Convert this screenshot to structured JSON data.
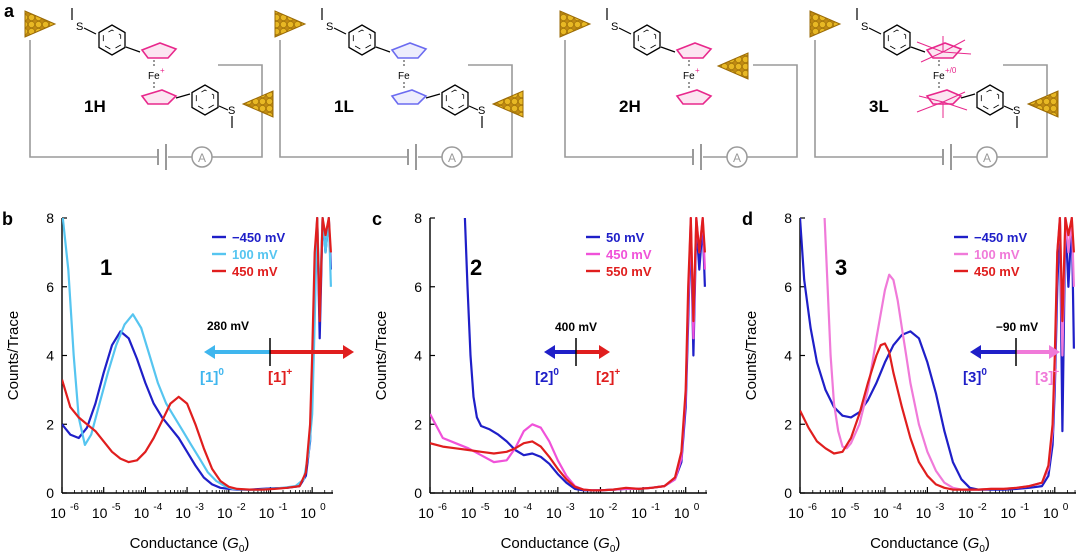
{
  "panel_a": {
    "label": "a",
    "circuits": [
      {
        "label": "1H",
        "fe": "Fe",
        "charge": "+",
        "ring_color": "#e8288c"
      },
      {
        "label": "1L",
        "fe": "Fe",
        "charge": "",
        "ring_color": "#6b6bf0"
      },
      {
        "label": "2H",
        "fe": "Fe",
        "charge": "+",
        "ring_color": "#e8288c"
      },
      {
        "label": "3L",
        "fe": "Fe",
        "charge": "+/0",
        "ring_color": "#e8288c"
      }
    ],
    "ammeter_symbol": "A",
    "methyl_symbol": "S"
  },
  "chart_data": [
    {
      "panel": "b",
      "type": "line",
      "title": "1",
      "xlabel": "Conductance (G",
      "xlabel_sub": "0",
      "ylabel": "Counts/Trace",
      "xscale": "log",
      "xlim": [
        -6,
        0.5
      ],
      "ylim": [
        0,
        8
      ],
      "yticks": [
        "0",
        "2",
        "4",
        "6",
        "8"
      ],
      "xticks": [
        {
          "base": "10",
          "exp": "-6"
        },
        {
          "base": "10",
          "exp": "-5"
        },
        {
          "base": "10",
          "exp": "-4"
        },
        {
          "base": "10",
          "exp": "-3"
        },
        {
          "base": "10",
          "exp": "-2"
        },
        {
          "base": "10",
          "exp": "-1"
        },
        {
          "base": "10",
          "exp": "0"
        }
      ],
      "switch_voltage": "280 mV",
      "state_left": "[1]",
      "state_left_sup": "0",
      "state_left_color": "#3fb6ee",
      "state_right": "[1]",
      "state_right_sup": "+",
      "state_right_color": "#e01e1e",
      "series": [
        {
          "name": "−450 mV",
          "color": "#1f1fc8",
          "x": [
            -6.0,
            -5.8,
            -5.6,
            -5.4,
            -5.2,
            -5.0,
            -4.8,
            -4.6,
            -4.4,
            -4.2,
            -4.0,
            -3.8,
            -3.6,
            -3.4,
            -3.2,
            -3.0,
            -2.8,
            -2.6,
            -2.4,
            -2.2,
            -2.0,
            -1.8,
            -1.5,
            -1.2,
            -0.9,
            -0.6,
            -0.3,
            -0.15,
            -0.05,
            0.0,
            0.06,
            0.12,
            0.18,
            0.25,
            0.32,
            0.4,
            0.45
          ],
          "y": [
            2.0,
            1.7,
            1.6,
            1.9,
            2.6,
            3.5,
            4.3,
            4.7,
            4.5,
            3.9,
            3.2,
            2.6,
            2.2,
            1.9,
            1.6,
            1.2,
            0.8,
            0.45,
            0.25,
            0.15,
            0.12,
            0.1,
            0.1,
            0.12,
            0.14,
            0.15,
            0.2,
            0.5,
            1.5,
            3.5,
            6.0,
            8.0,
            4.5,
            8.0,
            7.0,
            8.0,
            6.5
          ]
        },
        {
          "name": "100 mV",
          "color": "#56c5f0",
          "x": [
            -5.98,
            -5.85,
            -5.72,
            -5.6,
            -5.45,
            -5.3,
            -5.1,
            -4.9,
            -4.7,
            -4.5,
            -4.3,
            -4.1,
            -3.9,
            -3.7,
            -3.5,
            -3.3,
            -3.1,
            -2.9,
            -2.7,
            -2.5,
            -2.3,
            -2.1,
            -1.9,
            -1.6,
            -1.3,
            -1.0,
            -0.7,
            -0.4,
            -0.2,
            -0.08,
            0.0,
            0.06,
            0.12,
            0.18,
            0.25,
            0.32,
            0.4,
            0.45
          ],
          "y": [
            8.0,
            6.5,
            4.0,
            2.2,
            1.4,
            1.7,
            2.6,
            3.5,
            4.3,
            4.9,
            5.2,
            4.8,
            4.0,
            3.2,
            2.6,
            2.2,
            1.8,
            1.4,
            1.0,
            0.6,
            0.35,
            0.2,
            0.12,
            0.1,
            0.1,
            0.12,
            0.15,
            0.2,
            0.4,
            1.2,
            2.3,
            5.0,
            8.0,
            5.5,
            8.0,
            7.0,
            8.0,
            6.0
          ]
        },
        {
          "name": "450 mV",
          "color": "#e01e1e",
          "x": [
            -6.0,
            -5.8,
            -5.6,
            -5.4,
            -5.2,
            -5.0,
            -4.8,
            -4.6,
            -4.4,
            -4.2,
            -4.0,
            -3.8,
            -3.6,
            -3.4,
            -3.2,
            -3.0,
            -2.8,
            -2.6,
            -2.4,
            -2.2,
            -2.0,
            -1.8,
            -1.5,
            -1.2,
            -0.9,
            -0.6,
            -0.3,
            -0.15,
            -0.05,
            0.0,
            0.06,
            0.12,
            0.18,
            0.25,
            0.32,
            0.4,
            0.45
          ],
          "y": [
            3.3,
            2.5,
            2.2,
            2.0,
            1.8,
            1.5,
            1.2,
            1.0,
            0.9,
            0.95,
            1.2,
            1.6,
            2.1,
            2.6,
            2.8,
            2.6,
            2.0,
            1.3,
            0.7,
            0.35,
            0.18,
            0.12,
            0.1,
            0.1,
            0.12,
            0.15,
            0.2,
            0.6,
            2.0,
            4.0,
            7.0,
            8.0,
            5.0,
            8.0,
            7.5,
            8.0,
            7.0
          ]
        }
      ]
    },
    {
      "panel": "c",
      "type": "line",
      "title": "2",
      "xlabel": "Conductance (G",
      "xlabel_sub": "0",
      "ylabel": "Counts/Trace",
      "xscale": "log",
      "xlim": [
        -6,
        0.5
      ],
      "ylim": [
        0,
        8
      ],
      "yticks": [
        "0",
        "2",
        "4",
        "6",
        "8"
      ],
      "xticks": [
        {
          "base": "10",
          "exp": "-6"
        },
        {
          "base": "10",
          "exp": "-5"
        },
        {
          "base": "10",
          "exp": "-4"
        },
        {
          "base": "10",
          "exp": "-3"
        },
        {
          "base": "10",
          "exp": "-2"
        },
        {
          "base": "10",
          "exp": "-1"
        },
        {
          "base": "10",
          "exp": "0"
        }
      ],
      "switch_voltage": "400 mV",
      "state_left": "[2]",
      "state_left_sup": "0",
      "state_left_color": "#1f1fc8",
      "state_right": "[2]",
      "state_right_sup": "+",
      "state_right_color": "#e01e1e",
      "series": [
        {
          "name": "50 mV",
          "color": "#1f1fc8",
          "x": [
            -5.18,
            -5.12,
            -5.05,
            -4.98,
            -4.9,
            -4.8,
            -4.6,
            -4.4,
            -4.2,
            -4.0,
            -3.8,
            -3.6,
            -3.4,
            -3.2,
            -3.0,
            -2.8,
            -2.6,
            -2.4,
            -2.2,
            -2.0,
            -1.7,
            -1.4,
            -1.1,
            -0.8,
            -0.5,
            -0.25,
            -0.1,
            0.0,
            0.06,
            0.12,
            0.18,
            0.25,
            0.32,
            0.4,
            0.45
          ],
          "y": [
            8.0,
            6.0,
            4.0,
            2.8,
            2.2,
            1.95,
            1.85,
            1.7,
            1.5,
            1.25,
            1.1,
            1.15,
            1.05,
            0.85,
            0.55,
            0.3,
            0.12,
            0.08,
            0.08,
            0.08,
            0.1,
            0.12,
            0.12,
            0.15,
            0.2,
            0.4,
            0.9,
            2.5,
            5.0,
            7.8,
            4.0,
            7.8,
            6.5,
            7.8,
            6.0
          ]
        },
        {
          "name": "450 mV",
          "color": "#f052d9",
          "x": [
            -6.0,
            -5.7,
            -5.4,
            -5.1,
            -4.8,
            -4.5,
            -4.2,
            -4.0,
            -3.8,
            -3.6,
            -3.4,
            -3.2,
            -3.0,
            -2.8,
            -2.6,
            -2.4,
            -2.2,
            -2.0,
            -1.7,
            -1.4,
            -1.1,
            -0.8,
            -0.5,
            -0.25,
            -0.1,
            0.0,
            0.06,
            0.12,
            0.18,
            0.25,
            0.32,
            0.4,
            0.45
          ],
          "y": [
            2.3,
            1.6,
            1.45,
            1.3,
            1.1,
            0.9,
            0.95,
            1.3,
            1.8,
            2.0,
            1.9,
            1.5,
            0.95,
            0.5,
            0.2,
            0.1,
            0.08,
            0.08,
            0.1,
            0.12,
            0.12,
            0.15,
            0.2,
            0.4,
            1.0,
            2.8,
            5.5,
            8.0,
            4.5,
            8.0,
            7.0,
            8.0,
            6.5
          ]
        },
        {
          "name": "550 mV",
          "color": "#e01e1e",
          "x": [
            -6.0,
            -5.7,
            -5.4,
            -5.1,
            -4.8,
            -4.5,
            -4.2,
            -4.0,
            -3.8,
            -3.6,
            -3.4,
            -3.2,
            -3.0,
            -2.8,
            -2.6,
            -2.4,
            -2.2,
            -2.0,
            -1.7,
            -1.4,
            -1.1,
            -0.8,
            -0.5,
            -0.25,
            -0.1,
            0.0,
            0.06,
            0.12,
            0.18,
            0.25,
            0.32,
            0.4,
            0.45
          ],
          "y": [
            1.45,
            1.35,
            1.3,
            1.25,
            1.2,
            1.15,
            1.2,
            1.3,
            1.45,
            1.5,
            1.35,
            1.05,
            0.7,
            0.4,
            0.18,
            0.1,
            0.08,
            0.08,
            0.1,
            0.15,
            0.12,
            0.15,
            0.2,
            0.45,
            1.2,
            3.0,
            6.0,
            8.0,
            5.0,
            8.0,
            7.0,
            8.0,
            7.0
          ]
        }
      ]
    },
    {
      "panel": "d",
      "type": "line",
      "title": "3",
      "xlabel": "Conductance (G",
      "xlabel_sub": "0",
      "ylabel": "Counts/Trace",
      "xscale": "log",
      "xlim": [
        -6,
        0.5
      ],
      "ylim": [
        0,
        8
      ],
      "yticks": [
        "0",
        "2",
        "4",
        "6",
        "8"
      ],
      "xticks": [
        {
          "base": "10",
          "exp": "-6"
        },
        {
          "base": "10",
          "exp": "-5"
        },
        {
          "base": "10",
          "exp": "-4"
        },
        {
          "base": "10",
          "exp": "-3"
        },
        {
          "base": "10",
          "exp": "-2"
        },
        {
          "base": "10",
          "exp": "-1"
        },
        {
          "base": "10",
          "exp": "0"
        }
      ],
      "switch_voltage": "−90 mV",
      "state_left": "[3]",
      "state_left_sup": "0",
      "state_left_color": "#1f1fc8",
      "state_right": "[3]",
      "state_right_sup": "+",
      "state_right_color": "#f07ad9",
      "series": [
        {
          "name": "−450 mV",
          "color": "#1f1fc8",
          "x": [
            -6.0,
            -5.9,
            -5.75,
            -5.6,
            -5.4,
            -5.2,
            -5.0,
            -4.8,
            -4.6,
            -4.4,
            -4.2,
            -4.0,
            -3.8,
            -3.6,
            -3.4,
            -3.2,
            -3.0,
            -2.8,
            -2.6,
            -2.4,
            -2.2,
            -2.0,
            -1.8,
            -1.5,
            -1.2,
            -0.9,
            -0.6,
            -0.3,
            -0.15,
            -0.05,
            0.0,
            0.06,
            0.12,
            0.18,
            0.25,
            0.32,
            0.4,
            0.45
          ],
          "y": [
            8.0,
            6.2,
            4.8,
            3.8,
            3.0,
            2.5,
            2.25,
            2.2,
            2.35,
            2.7,
            3.2,
            3.8,
            4.3,
            4.6,
            4.7,
            4.5,
            3.8,
            2.9,
            1.8,
            0.9,
            0.4,
            0.15,
            0.1,
            0.1,
            0.1,
            0.12,
            0.15,
            0.2,
            0.5,
            1.4,
            3.0,
            6.0,
            8.0,
            1.8,
            8.0,
            6.0,
            8.0,
            4.2
          ]
        },
        {
          "name": "100 mV",
          "color": "#f07ad9",
          "x": [
            -5.42,
            -5.35,
            -5.28,
            -5.2,
            -5.1,
            -5.0,
            -4.9,
            -4.8,
            -4.6,
            -4.4,
            -4.2,
            -4.0,
            -3.9,
            -3.8,
            -3.7,
            -3.6,
            -3.5,
            -3.4,
            -3.2,
            -3.0,
            -2.8,
            -2.6,
            -2.4,
            -2.2,
            -2.0,
            -1.8,
            -1.5,
            -1.2,
            -0.9,
            -0.6,
            -0.3,
            -0.15,
            -0.05,
            0.0,
            0.06,
            0.12,
            0.18,
            0.25,
            0.32,
            0.4,
            0.45
          ],
          "y": [
            8.0,
            6.0,
            4.0,
            2.6,
            1.8,
            1.35,
            1.3,
            1.45,
            2.0,
            3.0,
            4.5,
            5.9,
            6.35,
            6.2,
            5.6,
            4.8,
            4.0,
            3.2,
            2.0,
            1.2,
            0.65,
            0.3,
            0.15,
            0.1,
            0.1,
            0.1,
            0.12,
            0.12,
            0.15,
            0.2,
            0.3,
            0.7,
            1.8,
            3.5,
            7.0,
            8.0,
            4.0,
            8.0,
            7.0,
            8.0,
            6.0
          ]
        },
        {
          "name": "450 mV",
          "color": "#e01e1e",
          "x": [
            -6.0,
            -5.8,
            -5.6,
            -5.4,
            -5.2,
            -5.0,
            -4.8,
            -4.6,
            -4.4,
            -4.2,
            -4.1,
            -4.0,
            -3.9,
            -3.8,
            -3.6,
            -3.4,
            -3.2,
            -3.0,
            -2.8,
            -2.6,
            -2.4,
            -2.2,
            -2.0,
            -1.8,
            -1.5,
            -1.2,
            -0.9,
            -0.6,
            -0.3,
            -0.15,
            -0.05,
            0.0,
            0.06,
            0.12,
            0.18,
            0.25,
            0.32,
            0.4,
            0.45
          ],
          "y": [
            2.4,
            1.9,
            1.5,
            1.3,
            1.15,
            1.2,
            1.6,
            2.3,
            3.2,
            4.0,
            4.3,
            4.35,
            4.1,
            3.5,
            2.5,
            1.6,
            0.9,
            0.5,
            0.25,
            0.15,
            0.1,
            0.1,
            0.1,
            0.1,
            0.12,
            0.12,
            0.15,
            0.2,
            0.3,
            0.8,
            2.0,
            4.0,
            7.0,
            8.0,
            5.0,
            8.0,
            7.5,
            8.0,
            7.0
          ]
        }
      ]
    }
  ]
}
